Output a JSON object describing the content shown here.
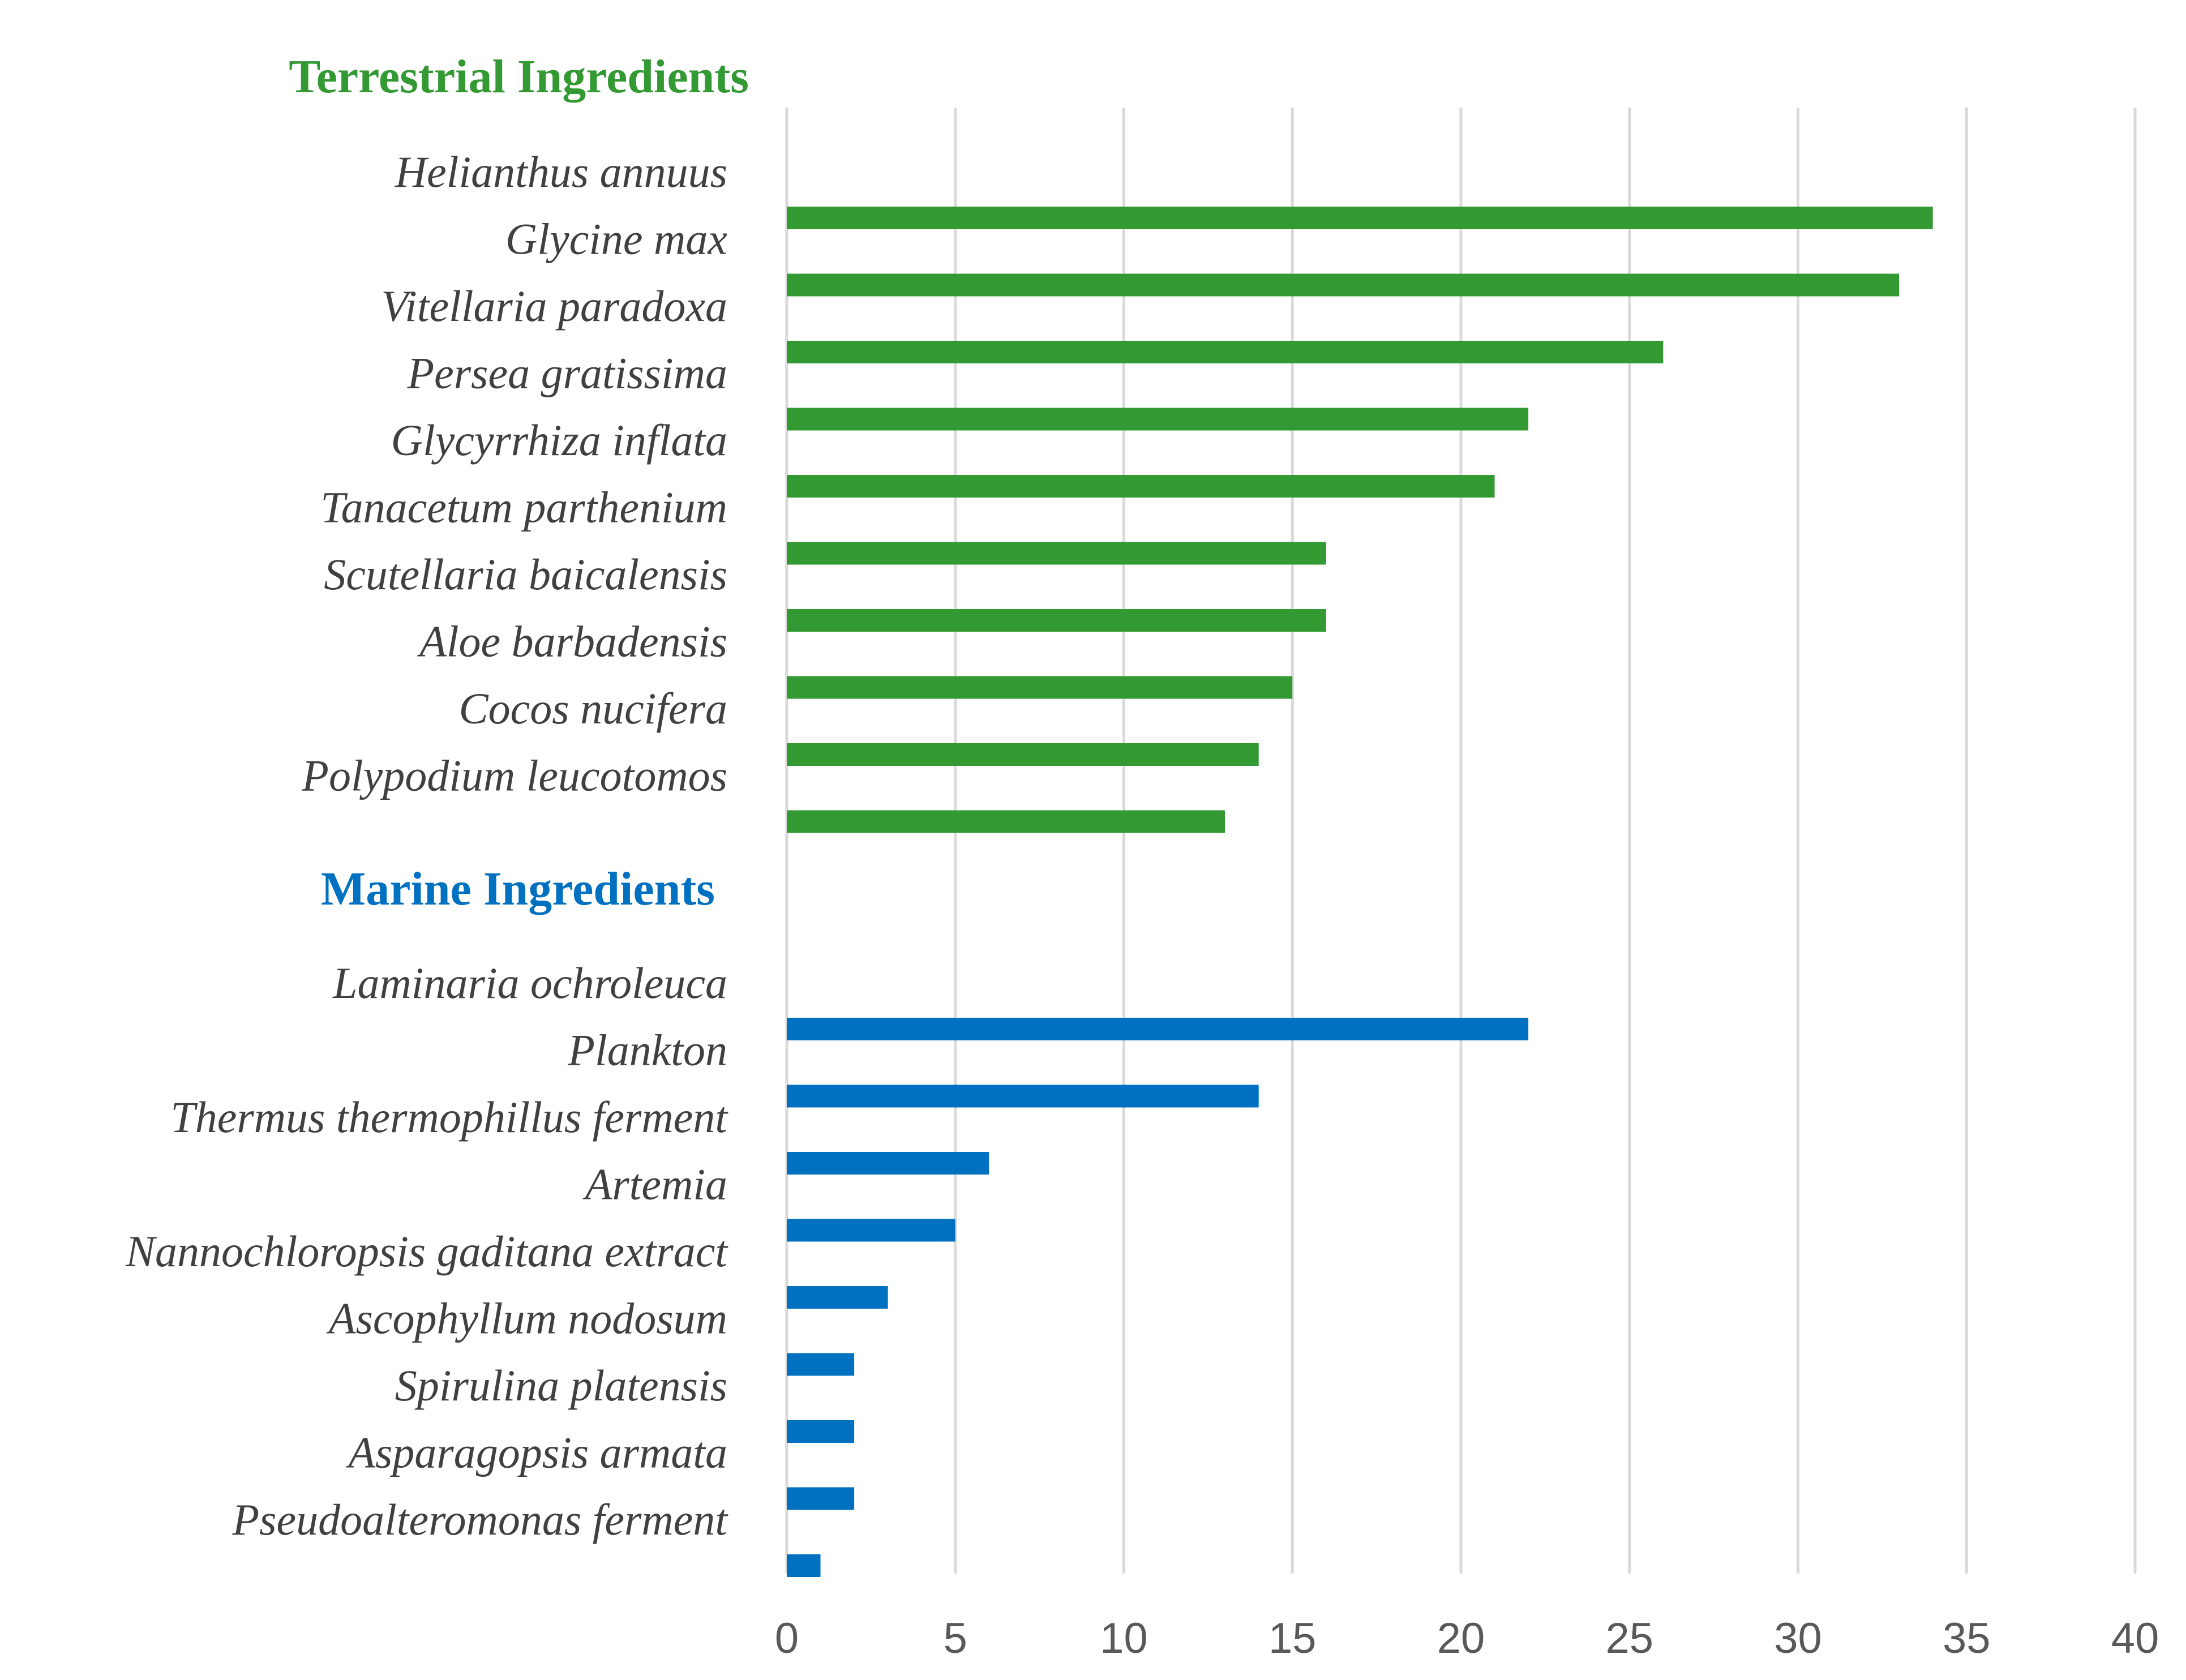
{
  "chart_data": {
    "type": "bar",
    "orientation": "horizontal",
    "xlim": [
      0,
      40
    ],
    "x_ticks": [
      "0",
      "5",
      "10",
      "15",
      "20",
      "25",
      "30",
      "35",
      "40"
    ],
    "grid": true,
    "groups": [
      {
        "title": "Terrestrial Ingredients",
        "color": "#339933",
        "categories": [
          "Helianthus annuus",
          "Glycine max",
          "Vitellaria paradoxa",
          "Persea gratissima",
          "Glycyrrhiza inflata",
          "Tanacetum parthenium",
          "Scutellaria baicalensis",
          "Aloe barbadensis",
          "Cocos nucifera",
          "Polypodium leucotomos"
        ],
        "values": [
          34,
          33,
          26,
          22,
          21,
          16,
          16,
          15,
          14,
          13
        ]
      },
      {
        "title": "Marine Ingredients",
        "color": "#0070c0",
        "categories": [
          "Laminaria ochroleuca",
          "Plankton",
          "Thermus thermophillus ferment",
          "Artemia",
          "Nannochloropsis gaditana extract",
          "Ascophyllum nodosum",
          "Spirulina platensis",
          "Asparagopsis armata",
          "Pseudoalteromonas ferment"
        ],
        "values": [
          22,
          14,
          6,
          5,
          3,
          2,
          2,
          2,
          1
        ]
      }
    ]
  }
}
